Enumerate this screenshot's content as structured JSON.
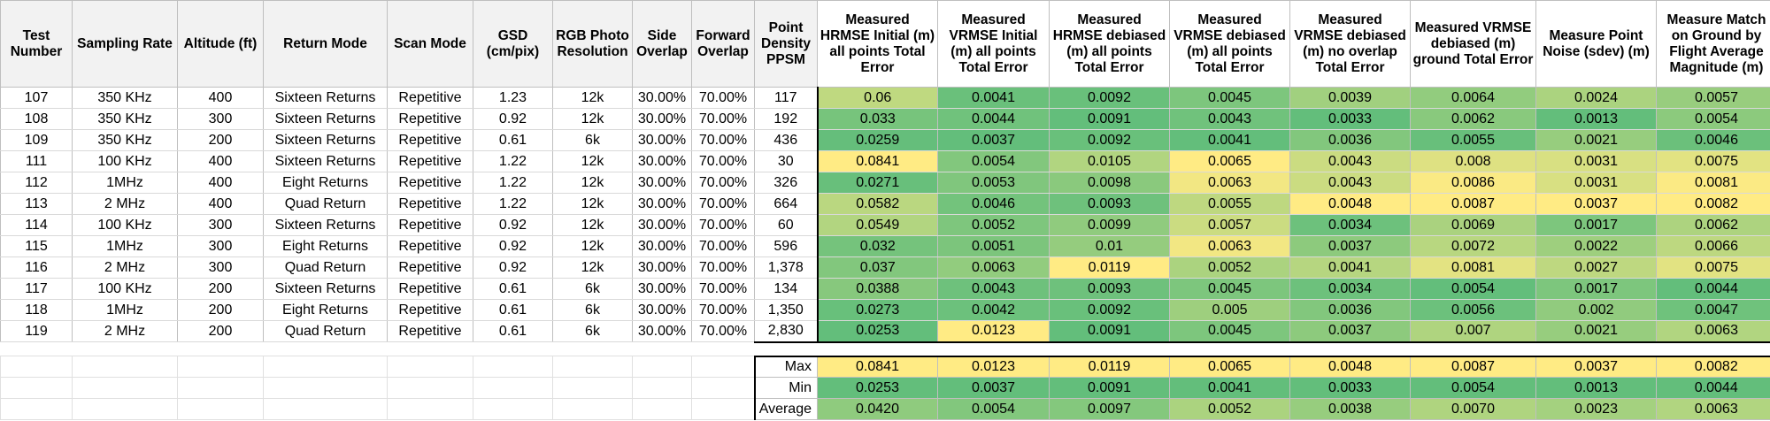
{
  "headers": [
    "Test Number",
    "Sampling Rate",
    "Altitude (ft)",
    "Return Mode",
    "Scan Mode",
    "GSD (cm/pix)",
    "RGB Photo Resolution",
    "Side Overlap",
    "Forward Overlap",
    "Point Density PPSM",
    "Measured HRMSE Initial (m) all points Total Error",
    "Measured VRMSE Initial (m) all points Total Error",
    "Measured HRMSE debiased (m) all points Total Error",
    "Measured VRMSE debiased (m)  all points Total Error",
    "Measured VRMSE debiased (m)  no overlap Total Error",
    "Measured VRMSE debiased (m) ground Total Error",
    "Measure Point Noise (sdev) (m)",
    "Measure Match on Ground by Flight Average Magnitude (m)"
  ],
  "rows": [
    [
      "107",
      "350 KHz",
      "400",
      "Sixteen Returns",
      "Repetitive",
      "1.23",
      "12k",
      "30.00%",
      "70.00%",
      "117",
      "0.06",
      "0.0041",
      "0.0092",
      "0.0045",
      "0.0039",
      "0.0064",
      "0.0024",
      "0.0057"
    ],
    [
      "108",
      "350 KHz",
      "300",
      "Sixteen Returns",
      "Repetitive",
      "0.92",
      "12k",
      "30.00%",
      "70.00%",
      "192",
      "0.033",
      "0.0044",
      "0.0091",
      "0.0043",
      "0.0033",
      "0.0062",
      "0.0013",
      "0.0054"
    ],
    [
      "109",
      "350 KHz",
      "200",
      "Sixteen Returns",
      "Repetitive",
      "0.61",
      "6k",
      "30.00%",
      "70.00%",
      "436",
      "0.0259",
      "0.0037",
      "0.0092",
      "0.0041",
      "0.0036",
      "0.0055",
      "0.0021",
      "0.0046"
    ],
    [
      "111",
      "100 KHz",
      "400",
      "Sixteen Returns",
      "Repetitive",
      "1.22",
      "12k",
      "30.00%",
      "70.00%",
      "30",
      "0.0841",
      "0.0054",
      "0.0105",
      "0.0065",
      "0.0043",
      "0.008",
      "0.0031",
      "0.0075"
    ],
    [
      "112",
      "1MHz",
      "400",
      "Eight Returns",
      "Repetitive",
      "1.22",
      "12k",
      "30.00%",
      "70.00%",
      "326",
      "0.0271",
      "0.0053",
      "0.0098",
      "0.0063",
      "0.0043",
      "0.0086",
      "0.0031",
      "0.0081"
    ],
    [
      "113",
      "2 MHz",
      "400",
      "Quad Return",
      "Repetitive",
      "1.22",
      "12k",
      "30.00%",
      "70.00%",
      "664",
      "0.0582",
      "0.0046",
      "0.0093",
      "0.0055",
      "0.0048",
      "0.0087",
      "0.0037",
      "0.0082"
    ],
    [
      "114",
      "100 KHz",
      "300",
      "Sixteen Returns",
      "Repetitive",
      "0.92",
      "12k",
      "30.00%",
      "70.00%",
      "60",
      "0.0549",
      "0.0052",
      "0.0099",
      "0.0057",
      "0.0034",
      "0.0069",
      "0.0017",
      "0.0062"
    ],
    [
      "115",
      "1MHz",
      "300",
      "Eight Returns",
      "Repetitive",
      "0.92",
      "12k",
      "30.00%",
      "70.00%",
      "596",
      "0.032",
      "0.0051",
      "0.01",
      "0.0063",
      "0.0037",
      "0.0072",
      "0.0022",
      "0.0066"
    ],
    [
      "116",
      "2 MHz",
      "300",
      "Quad Return",
      "Repetitive",
      "0.92",
      "12k",
      "30.00%",
      "70.00%",
      "1,378",
      "0.037",
      "0.0063",
      "0.0119",
      "0.0052",
      "0.0041",
      "0.0081",
      "0.0027",
      "0.0075"
    ],
    [
      "117",
      "100 KHz",
      "200",
      "Sixteen Returns",
      "Repetitive",
      "0.61",
      "6k",
      "30.00%",
      "70.00%",
      "134",
      "0.0388",
      "0.0043",
      "0.0093",
      "0.0045",
      "0.0034",
      "0.0054",
      "0.0017",
      "0.0044"
    ],
    [
      "118",
      "1MHz",
      "200",
      "Eight Returns",
      "Repetitive",
      "0.61",
      "6k",
      "30.00%",
      "70.00%",
      "1,350",
      "0.0273",
      "0.0042",
      "0.0092",
      "0.005",
      "0.0036",
      "0.0056",
      "0.002",
      "0.0047"
    ],
    [
      "119",
      "2 MHz",
      "200",
      "Quad Return",
      "Repetitive",
      "0.61",
      "6k",
      "30.00%",
      "70.00%",
      "2,830",
      "0.0253",
      "0.0123",
      "0.0091",
      "0.0045",
      "0.0037",
      "0.007",
      "0.0021",
      "0.0063"
    ]
  ],
  "stats": [
    {
      "label": "Max",
      "values": [
        "0.0841",
        "0.0123",
        "0.0119",
        "0.0065",
        "0.0048",
        "0.0087",
        "0.0037",
        "0.0082"
      ]
    },
    {
      "label": "Min",
      "values": [
        "0.0253",
        "0.0037",
        "0.0091",
        "0.0041",
        "0.0033",
        "0.0054",
        "0.0013",
        "0.0044"
      ]
    },
    {
      "label": "Average",
      "values": [
        "0.0420",
        "0.0054",
        "0.0097",
        "0.0052",
        "0.0038",
        "0.0070",
        "0.0023",
        "0.0063"
      ]
    }
  ],
  "colors": {
    "best": "#63be7b",
    "worst": "#ffeb84",
    "header_fill": "#f2f2f2"
  }
}
